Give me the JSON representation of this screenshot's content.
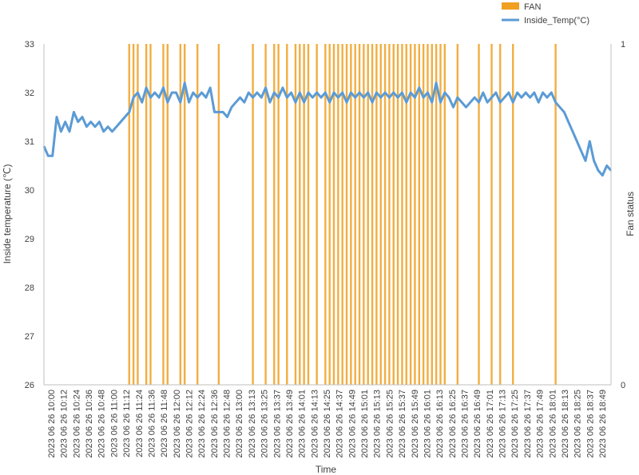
{
  "chart_data": {
    "type": "line",
    "xlabel": "Time",
    "ylabel_left": "Inside temperature (℃)",
    "ylabel_right": "Fan status",
    "ylim_left": [
      26,
      33
    ],
    "ylim_right": [
      0,
      1
    ],
    "yticks_left": [
      "33",
      "32",
      "31",
      "30",
      "29",
      "28",
      "27",
      "26"
    ],
    "yticks_right": [
      "1",
      "0"
    ],
    "grid": false,
    "legend_position": "top-right",
    "colors": {
      "temperature": "#5b9bd5",
      "fan": "#f0a020"
    },
    "x_tick_labels": [
      "2023 06 26 10:00",
      "2023 06 26 10:12",
      "2023 06 26 10:24",
      "2023 06 26 10:36",
      "2023 06 26 10:48",
      "2023 06 26 11:00",
      "2023 06 26 11:12",
      "2023 06 26 11:24",
      "2023 06 26 11:36",
      "2023 06 26 11:48",
      "2023 06 26 12:00",
      "2023 06 26 12:12",
      "2023 06 26 12:24",
      "2023 06 26 12:36",
      "2023 06 26 12:48",
      "2023 06 26 13:00",
      "2023 06 26 13:13",
      "2023 06 26 13:25",
      "2023 06 26 13:37",
      "2023 06 26 13:49",
      "2023 06 26 14:01",
      "2023 06 26 14:13",
      "2023 06 26 14:25",
      "2023 06 26 14:37",
      "2023 06 26 14:49",
      "2023 06 26 15:01",
      "2023 06 26 15:13",
      "2023 06 26 15:25",
      "2023 06 26 15:37",
      "2023 06 26 15:49",
      "2023 06 26 16:01",
      "2023 06 26 16:13",
      "2023 06 26 16:25",
      "2023 06 26 16:37",
      "2023 06 26 16:49",
      "2023 06 26 17:01",
      "2023 06 26 17:13",
      "2023 06 26 17:25",
      "2023 06 26 17:37",
      "2023 06 26 17:49",
      "2023 06 26 18:01",
      "2023 06 26 18:13",
      "2023 06 26 18:25",
      "2023 06 26 18:37",
      "2023 06 26 18:49"
    ],
    "series": [
      {
        "name": "Inside_Temp(°C)",
        "axis": "left",
        "kind": "line",
        "points": [
          [
            0,
            30.9
          ],
          [
            2,
            30.7
          ],
          [
            4,
            30.7
          ],
          [
            6,
            31.5
          ],
          [
            8,
            31.2
          ],
          [
            10,
            31.4
          ],
          [
            12,
            31.2
          ],
          [
            14,
            31.6
          ],
          [
            16,
            31.4
          ],
          [
            18,
            31.5
          ],
          [
            20,
            31.3
          ],
          [
            22,
            31.4
          ],
          [
            24,
            31.3
          ],
          [
            26,
            31.4
          ],
          [
            28,
            31.2
          ],
          [
            30,
            31.3
          ],
          [
            32,
            31.2
          ],
          [
            34,
            31.3
          ],
          [
            36,
            31.4
          ],
          [
            38,
            31.5
          ],
          [
            40,
            31.6
          ],
          [
            42,
            31.9
          ],
          [
            44,
            32.0
          ],
          [
            46,
            31.8
          ],
          [
            48,
            32.1
          ],
          [
            50,
            31.9
          ],
          [
            52,
            32.0
          ],
          [
            54,
            31.9
          ],
          [
            56,
            32.1
          ],
          [
            58,
            31.8
          ],
          [
            60,
            32.0
          ],
          [
            62,
            32.0
          ],
          [
            64,
            31.8
          ],
          [
            66,
            32.2
          ],
          [
            68,
            31.8
          ],
          [
            70,
            32.0
          ],
          [
            72,
            31.9
          ],
          [
            74,
            32.0
          ],
          [
            76,
            31.9
          ],
          [
            78,
            32.1
          ],
          [
            80,
            31.6
          ],
          [
            82,
            31.6
          ],
          [
            84,
            31.6
          ],
          [
            86,
            31.5
          ],
          [
            88,
            31.7
          ],
          [
            90,
            31.8
          ],
          [
            92,
            31.9
          ],
          [
            94,
            31.8
          ],
          [
            96,
            32.0
          ],
          [
            98,
            31.9
          ],
          [
            100,
            32.0
          ],
          [
            102,
            31.9
          ],
          [
            104,
            32.1
          ],
          [
            106,
            31.8
          ],
          [
            108,
            32.0
          ],
          [
            110,
            31.9
          ],
          [
            112,
            32.1
          ],
          [
            114,
            31.9
          ],
          [
            116,
            32.0
          ],
          [
            118,
            31.8
          ],
          [
            120,
            32.0
          ],
          [
            122,
            31.8
          ],
          [
            124,
            32.0
          ],
          [
            126,
            31.9
          ],
          [
            128,
            32.0
          ],
          [
            130,
            31.9
          ],
          [
            132,
            32.0
          ],
          [
            134,
            31.8
          ],
          [
            136,
            32.0
          ],
          [
            138,
            31.9
          ],
          [
            140,
            32.0
          ],
          [
            142,
            31.8
          ],
          [
            144,
            32.0
          ],
          [
            146,
            31.9
          ],
          [
            148,
            32.0
          ],
          [
            150,
            31.9
          ],
          [
            152,
            32.0
          ],
          [
            154,
            31.8
          ],
          [
            156,
            32.0
          ],
          [
            158,
            31.9
          ],
          [
            160,
            32.0
          ],
          [
            162,
            31.9
          ],
          [
            164,
            32.0
          ],
          [
            166,
            31.9
          ],
          [
            168,
            32.0
          ],
          [
            170,
            31.8
          ],
          [
            172,
            32.0
          ],
          [
            174,
            31.9
          ],
          [
            176,
            32.1
          ],
          [
            178,
            31.9
          ],
          [
            180,
            32.0
          ],
          [
            182,
            31.8
          ],
          [
            184,
            32.2
          ],
          [
            186,
            31.8
          ],
          [
            188,
            32.0
          ],
          [
            190,
            31.9
          ],
          [
            192,
            31.7
          ],
          [
            194,
            31.9
          ],
          [
            196,
            31.8
          ],
          [
            198,
            31.7
          ],
          [
            200,
            31.8
          ],
          [
            202,
            31.9
          ],
          [
            204,
            31.8
          ],
          [
            206,
            32.0
          ],
          [
            208,
            31.8
          ],
          [
            210,
            31.9
          ],
          [
            212,
            32.0
          ],
          [
            214,
            31.8
          ],
          [
            216,
            31.9
          ],
          [
            218,
            32.0
          ],
          [
            220,
            31.8
          ],
          [
            222,
            32.0
          ],
          [
            224,
            31.9
          ],
          [
            226,
            32.0
          ],
          [
            228,
            31.9
          ],
          [
            230,
            32.0
          ],
          [
            232,
            31.8
          ],
          [
            234,
            32.0
          ],
          [
            236,
            31.9
          ],
          [
            238,
            32.0
          ],
          [
            240,
            31.8
          ],
          [
            242,
            31.7
          ],
          [
            244,
            31.6
          ],
          [
            246,
            31.4
          ],
          [
            248,
            31.2
          ],
          [
            250,
            31.0
          ],
          [
            252,
            30.8
          ],
          [
            254,
            30.6
          ],
          [
            256,
            31.0
          ],
          [
            258,
            30.6
          ],
          [
            260,
            30.4
          ],
          [
            262,
            30.3
          ],
          [
            264,
            30.5
          ],
          [
            266,
            30.4
          ]
        ]
      },
      {
        "name": "FAN",
        "axis": "right",
        "kind": "bar",
        "on_x": [
          40,
          42,
          44,
          48,
          50,
          56,
          58,
          64,
          66,
          72,
          82,
          98,
          104,
          108,
          110,
          114,
          118,
          120,
          122,
          124,
          128,
          132,
          134,
          136,
          138,
          140,
          142,
          144,
          146,
          148,
          150,
          152,
          154,
          156,
          158,
          160,
          162,
          164,
          166,
          168,
          170,
          172,
          174,
          176,
          178,
          180,
          182,
          184,
          186,
          188,
          194,
          204,
          210,
          214,
          220,
          240
        ],
        "on_value": 1
      }
    ]
  }
}
